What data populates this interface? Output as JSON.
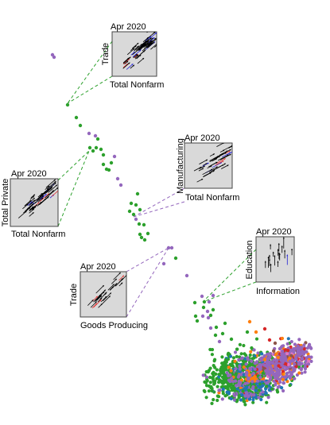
{
  "chart_data": {
    "type": "scatter",
    "title": "",
    "xlabel": "",
    "ylabel": "",
    "grid": false,
    "legend": "none",
    "colors": {
      "green": "#2ca02c",
      "purple": "#9467bd",
      "orange": "#ff7f0e",
      "blue": "#1f77b4",
      "red": "#d62728",
      "brown": "#8c564b",
      "pink": "#e377c2",
      "inset_bg": "#d9d9d9",
      "connector_green": "#2ca02c",
      "connector_purple": "#9467bd",
      "arrow_black": "#000000",
      "arrow_blue": "#1f1fd6",
      "arrow_red": "#e03030"
    },
    "insets": [
      {
        "id": "inset-1",
        "date": "Apr 2020",
        "xlabel": "Total Nonfarm",
        "ylabel": "Trade",
        "connector_color": "green"
      },
      {
        "id": "inset-2",
        "date": "Apr 2020",
        "xlabel": "Total Nonfarm",
        "ylabel": "Manufacturing",
        "connector_color": "purple"
      },
      {
        "id": "inset-3",
        "date": "Apr 2020",
        "xlabel": "Total Nonfarm",
        "ylabel": "Total Private",
        "connector_color": "green"
      },
      {
        "id": "inset-4",
        "date": "Apr 2020",
        "xlabel": "Information",
        "ylabel": "Education",
        "connector_color": "green"
      },
      {
        "id": "inset-5",
        "date": "Apr 2020",
        "xlabel": "Goods Producing",
        "ylabel": "Trade",
        "connector_color": "purple"
      }
    ]
  }
}
